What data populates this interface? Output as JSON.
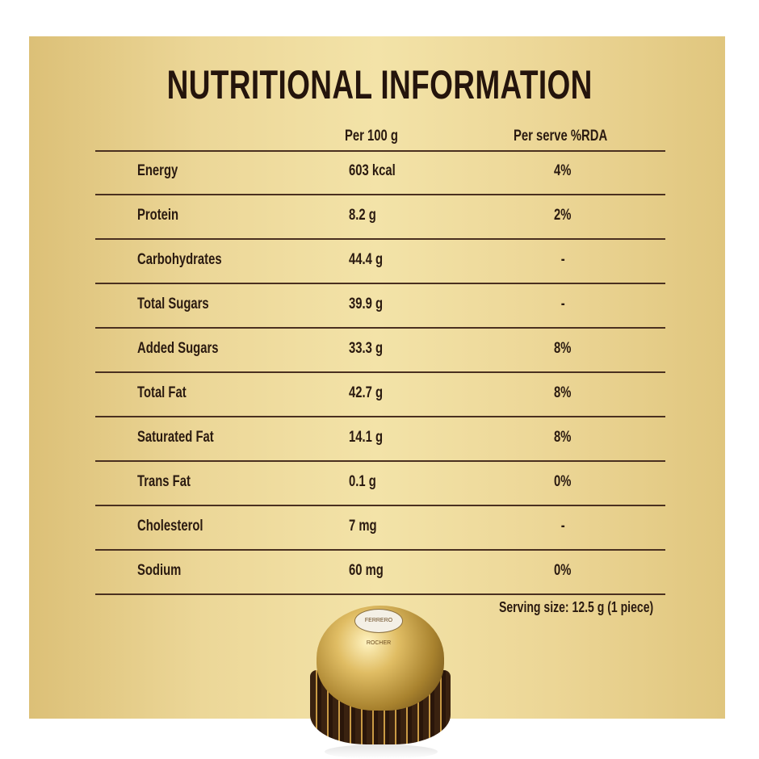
{
  "title": "NUTRITIONAL INFORMATION",
  "columns": {
    "per100": "Per 100 g",
    "rda": "Per serve %RDA"
  },
  "rows": [
    {
      "name": "Energy",
      "per100": "603 kcal",
      "rda": "4%"
    },
    {
      "name": "Protein",
      "per100": "8.2 g",
      "rda": "2%"
    },
    {
      "name": "Carbohydrates",
      "per100": "44.4 g",
      "rda": "-"
    },
    {
      "name": "Total Sugars",
      "per100": "39.9 g",
      "rda": "-"
    },
    {
      "name": "Added Sugars",
      "per100": "33.3 g",
      "rda": "8%"
    },
    {
      "name": "Total Fat",
      "per100": "42.7 g",
      "rda": "8%"
    },
    {
      "name": "Saturated Fat",
      "per100": "14.1 g",
      "rda": "8%"
    },
    {
      "name": "Trans Fat",
      "per100": "0.1 g",
      "rda": "0%"
    },
    {
      "name": "Cholesterol",
      "per100": "7 mg",
      "rda": "-"
    },
    {
      "name": "Sodium",
      "per100": "60 mg",
      "rda": "0%"
    }
  ],
  "serving": "Serving size: 12.5 g  (1 piece)",
  "product_logo": "FERRERO ROCHER",
  "colors": {
    "text": "#2a1a10",
    "gold": "#ecd798"
  }
}
